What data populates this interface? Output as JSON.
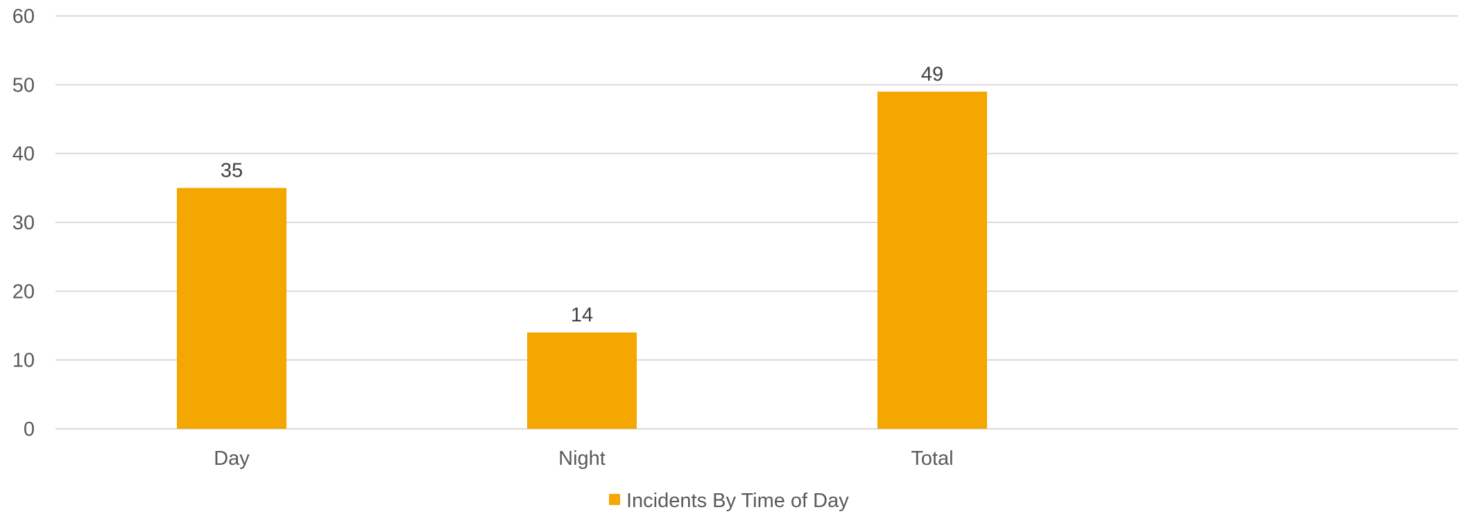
{
  "chart_data": {
    "type": "bar",
    "categories": [
      "Day",
      "Night",
      "Total"
    ],
    "series": [
      {
        "name": "Incidents By Time of Day",
        "values": [
          35,
          14,
          49
        ],
        "color": "#F4A700"
      }
    ],
    "title": "",
    "xlabel": "",
    "ylabel": "",
    "ylim": [
      0,
      60
    ],
    "yticks": [
      0,
      10,
      20,
      30,
      40,
      50,
      60
    ],
    "grid": true,
    "legend": "bottom",
    "data_labels": true
  }
}
